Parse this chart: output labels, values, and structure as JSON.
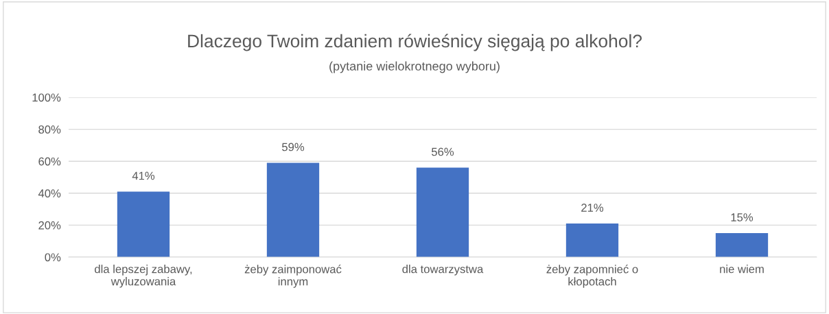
{
  "chart_data": {
    "type": "bar",
    "title": "Dlaczego Twoim zdaniem rówieśnicy sięgają po alkohol?",
    "subtitle": "(pytanie wielokrotnego wyboru)",
    "categories": [
      "dla lepszej zabawy,\nwyluzowania",
      "żeby zaimponować\ninnym",
      "dla towarzystwa",
      "żeby zapomnieć o\nkłopotach",
      "nie wiem"
    ],
    "values": [
      41,
      59,
      56,
      21,
      15
    ],
    "value_labels": [
      "41%",
      "59%",
      "56%",
      "21%",
      "15%"
    ],
    "color": "#4472c4",
    "ylim": [
      0,
      100
    ],
    "yticks": [
      {
        "value": 0,
        "label": "0%"
      },
      {
        "value": 20,
        "label": "20%"
      },
      {
        "value": 40,
        "label": "40%"
      },
      {
        "value": 60,
        "label": "60%"
      },
      {
        "value": 80,
        "label": "80%"
      },
      {
        "value": 100,
        "label": "100%"
      }
    ],
    "grid": "y",
    "legend": false
  }
}
